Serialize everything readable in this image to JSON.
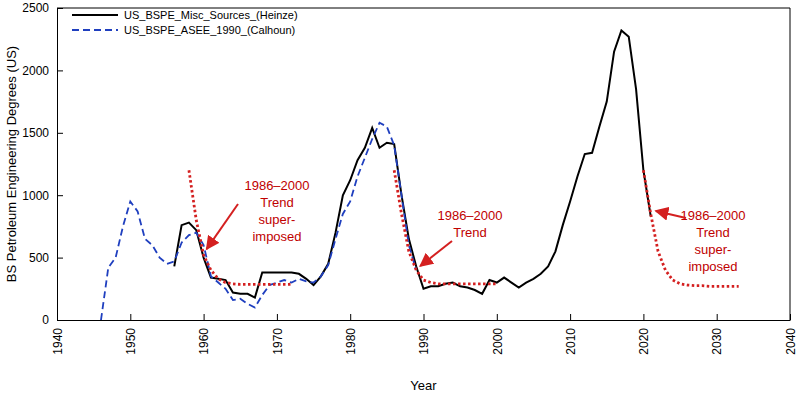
{
  "chart_data": {
    "type": "line",
    "x_label": "Year",
    "y_label": "BS Petroleum Engineering Degrees (US)",
    "xlim": [
      1940,
      2040
    ],
    "ylim": [
      0,
      2500
    ],
    "xticks": [
      1940,
      1950,
      1960,
      1970,
      1980,
      1990,
      2000,
      2010,
      2020,
      2030,
      2040
    ],
    "yticks": [
      0,
      500,
      1000,
      1500,
      2000,
      2500
    ],
    "grid": false,
    "legend": "upper left",
    "series": [
      {
        "name": "US_BSPE_Misc_Sources_(Heinze)",
        "color": "#000000",
        "line_style": "solid",
        "x": [
          1956,
          1957,
          1958,
          1959,
          1960,
          1961,
          1962,
          1963,
          1964,
          1965,
          1966,
          1967,
          1968,
          1969,
          1970,
          1971,
          1972,
          1973,
          1974,
          1975,
          1976,
          1977,
          1978,
          1979,
          1980,
          1981,
          1982,
          1983,
          1984,
          1985,
          1986,
          1987,
          1988,
          1989,
          1990,
          1991,
          1992,
          1993,
          1994,
          1995,
          1996,
          1997,
          1998,
          1999,
          2000,
          2001,
          2002,
          2003,
          2004,
          2005,
          2006,
          2007,
          2008,
          2009,
          2010,
          2011,
          2012,
          2013,
          2014,
          2015,
          2016,
          2017,
          2018,
          2019,
          2020,
          2021
        ],
        "values": [
          430,
          760,
          780,
          720,
          500,
          340,
          330,
          320,
          220,
          210,
          210,
          180,
          380,
          380,
          380,
          380,
          380,
          370,
          330,
          280,
          350,
          450,
          700,
          1000,
          1120,
          1280,
          1380,
          1540,
          1380,
          1420,
          1410,
          1000,
          650,
          430,
          250,
          270,
          270,
          290,
          300,
          270,
          260,
          240,
          210,
          320,
          300,
          340,
          300,
          260,
          300,
          330,
          370,
          430,
          550,
          760,
          950,
          1150,
          1330,
          1340,
          1550,
          1750,
          2150,
          2320,
          2270,
          1850,
          1200,
          830
        ]
      },
      {
        "name": "US_BSPE_ASEE_1990_(Calhoun)",
        "color": "#1f3fbf",
        "line_style": "dashed",
        "x": [
          1946,
          1947,
          1948,
          1949,
          1950,
          1951,
          1952,
          1953,
          1954,
          1955,
          1956,
          1957,
          1958,
          1959,
          1960,
          1961,
          1962,
          1963,
          1964,
          1965,
          1966,
          1967,
          1968,
          1969,
          1970,
          1971,
          1972,
          1973,
          1974,
          1975,
          1976,
          1977,
          1978,
          1979,
          1980,
          1981,
          1982,
          1983,
          1984,
          1985,
          1986,
          1987,
          1988,
          1989
        ],
        "values": [
          0,
          420,
          500,
          750,
          950,
          870,
          650,
          600,
          500,
          450,
          470,
          620,
          680,
          700,
          600,
          350,
          300,
          250,
          160,
          170,
          130,
          100,
          200,
          280,
          300,
          320,
          300,
          330,
          310,
          300,
          350,
          440,
          650,
          850,
          950,
          1150,
          1300,
          1450,
          1580,
          1550,
          1400,
          1000,
          600,
          400
        ]
      },
      {
        "color": "#d42020",
        "line_style": "dotted",
        "x": [
          1958,
          1959,
          1960,
          1961,
          1962,
          1963,
          1964,
          1965,
          1966,
          1967,
          1968,
          1969,
          1970,
          1971,
          1972
        ],
        "values": [
          1200,
          800,
          520,
          400,
          330,
          300,
          290,
          285,
          285,
          285,
          285,
          285,
          285,
          285,
          285
        ]
      },
      {
        "color": "#d42020",
        "line_style": "dotted",
        "x": [
          1986,
          1987,
          1988,
          1989,
          1990,
          1991,
          1992,
          1993,
          1994,
          1995,
          1996,
          1997,
          1998,
          1999,
          2000
        ],
        "values": [
          1200,
          850,
          550,
          400,
          320,
          300,
          290,
          290,
          290,
          290,
          290,
          290,
          290,
          290,
          290
        ]
      },
      {
        "color": "#d42020",
        "line_style": "dotted",
        "x": [
          2020,
          2021,
          2022,
          2023,
          2024,
          2025,
          2026,
          2027,
          2028,
          2029,
          2030,
          2031,
          2032,
          2033
        ],
        "values": [
          1200,
          850,
          550,
          400,
          320,
          290,
          280,
          275,
          275,
          270,
          270,
          270,
          270,
          270
        ]
      }
    ],
    "annotations": [
      {
        "lines": [
          "1986–2000",
          "Trend",
          "super-",
          "imposed"
        ],
        "color": "#c00000"
      },
      {
        "lines": [
          "1986–2000",
          "Trend"
        ],
        "color": "#c00000"
      },
      {
        "lines": [
          "1986–2000",
          "Trend",
          "super-",
          "imposed"
        ],
        "color": "#c00000"
      }
    ]
  }
}
